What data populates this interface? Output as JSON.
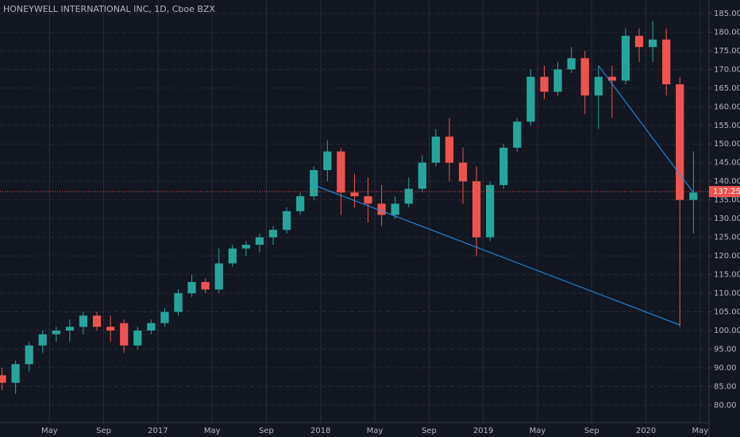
{
  "chart_data": {
    "type": "candlestick",
    "title": "HONEYWELL INTERNATIONAL INC, 1D, Cboe BZX",
    "x": [
      "2016-01",
      "2016-02",
      "2016-03",
      "2016-04",
      "2016-05",
      "2016-06",
      "2016-07",
      "2016-08",
      "2016-09",
      "2016-10",
      "2016-11",
      "2016-12",
      "2017-01",
      "2017-02",
      "2017-03",
      "2017-04",
      "2017-05",
      "2017-06",
      "2017-07",
      "2017-08",
      "2017-09",
      "2017-10",
      "2017-11",
      "2017-12",
      "2018-01",
      "2018-02",
      "2018-03",
      "2018-04",
      "2018-05",
      "2018-06",
      "2018-07",
      "2018-08",
      "2018-09",
      "2018-10",
      "2018-11",
      "2018-12",
      "2019-01",
      "2019-02",
      "2019-03",
      "2019-04",
      "2019-05",
      "2019-06",
      "2019-07",
      "2019-08",
      "2019-09",
      "2019-10",
      "2019-11",
      "2019-12",
      "2020-01",
      "2020-02",
      "2020-03",
      "2020-04"
    ],
    "open": [
      88,
      86,
      91,
      96,
      99,
      100,
      101,
      104,
      101,
      102,
      96,
      100,
      102,
      105,
      110,
      113,
      111,
      118,
      122,
      123,
      125,
      127,
      132,
      136,
      143,
      148,
      137,
      136,
      134,
      131,
      134,
      138,
      145,
      152,
      145,
      140,
      125,
      139,
      149,
      156,
      168,
      164,
      170,
      173,
      163,
      168,
      167,
      179,
      176,
      178,
      166,
      135
    ],
    "high": [
      90,
      92,
      97,
      100,
      101,
      103,
      105,
      105,
      104,
      103,
      101,
      103,
      106,
      111,
      115,
      114,
      122,
      123,
      124,
      126,
      128,
      133,
      137,
      144,
      151,
      149,
      142,
      141,
      139,
      136,
      141,
      147,
      154,
      157,
      149,
      144,
      140,
      150,
      157,
      170,
      171,
      172,
      176,
      175,
      171,
      171,
      181,
      181,
      183,
      181,
      168,
      148
    ],
    "low": [
      84,
      83,
      89,
      94,
      97,
      97,
      99,
      100,
      97,
      94,
      95,
      99,
      101,
      104,
      109,
      110,
      110,
      117,
      120,
      121,
      123,
      126,
      131,
      135,
      140,
      131,
      133,
      129,
      128,
      130,
      133,
      137,
      144,
      140,
      134,
      120,
      124,
      138,
      148,
      155,
      162,
      163,
      169,
      158,
      154,
      157,
      166,
      172,
      172,
      163,
      101,
      126
    ],
    "close": [
      86,
      91,
      96,
      99,
      100,
      101,
      104,
      101,
      100,
      96,
      100,
      102,
      105,
      110,
      113,
      111,
      118,
      122,
      123,
      125,
      127,
      132,
      136,
      143,
      148,
      137,
      136,
      134,
      131,
      134,
      138,
      145,
      152,
      145,
      140,
      125,
      139,
      149,
      156,
      168,
      164,
      170,
      173,
      163,
      168,
      167,
      179,
      176,
      178,
      166,
      135,
      137
    ],
    "up_color": "#26a69a",
    "down_color": "#ef5350",
    "xlim": [
      "2016-01",
      "2020-07"
    ],
    "xticks": [
      {
        "value": "2016-05",
        "label": "May"
      },
      {
        "value": "2016-09",
        "label": "Sep"
      },
      {
        "value": "2017-01",
        "label": "2017"
      },
      {
        "value": "2017-05",
        "label": "May"
      },
      {
        "value": "2017-09",
        "label": "Sep"
      },
      {
        "value": "2018-01",
        "label": "2018"
      },
      {
        "value": "2018-05",
        "label": "May"
      },
      {
        "value": "2018-09",
        "label": "Sep"
      },
      {
        "value": "2019-01",
        "label": "2019"
      },
      {
        "value": "2019-05",
        "label": "May"
      },
      {
        "value": "2019-09",
        "label": "Sep"
      },
      {
        "value": "2020-01",
        "label": "2020"
      },
      {
        "value": "2020-05",
        "label": "May"
      }
    ],
    "ylim": [
      75.3,
      188.6
    ],
    "yticks": [
      {
        "value": 80,
        "label": "80.00"
      },
      {
        "value": 85,
        "label": "85.00"
      },
      {
        "value": 90,
        "label": "90.00"
      },
      {
        "value": 95,
        "label": "95.00"
      },
      {
        "value": 100,
        "label": "100.00"
      },
      {
        "value": 105,
        "label": "105.00"
      },
      {
        "value": 110,
        "label": "110.00"
      },
      {
        "value": 115,
        "label": "115.00"
      },
      {
        "value": 120,
        "label": "120.00"
      },
      {
        "value": 125,
        "label": "125.00"
      },
      {
        "value": 130,
        "label": "130.00"
      },
      {
        "value": 135,
        "label": "135.00"
      },
      {
        "value": 140,
        "label": "140.00"
      },
      {
        "value": 145,
        "label": "145.00"
      },
      {
        "value": 150,
        "label": "150.00"
      },
      {
        "value": 155,
        "label": "155.00"
      },
      {
        "value": 160,
        "label": "160.00"
      },
      {
        "value": 165,
        "label": "165.00"
      },
      {
        "value": 170,
        "label": "170.00"
      },
      {
        "value": 175,
        "label": "175.00"
      },
      {
        "value": 180,
        "label": "180.00"
      },
      {
        "value": 185,
        "label": "185.00"
      }
    ],
    "grid": true,
    "last_price": 137.25,
    "last_price_color": "#ef5350",
    "trend_lines": [
      {
        "start": {
          "x": "2017-12",
          "y": 139
        },
        "end": {
          "x": "2020-03",
          "y": 101.5
        }
      },
      {
        "start": {
          "x": "2019-09",
          "y": 171
        },
        "end": {
          "x": "2020-04",
          "y": 137
        }
      }
    ],
    "trend_color": "#2196f3"
  }
}
